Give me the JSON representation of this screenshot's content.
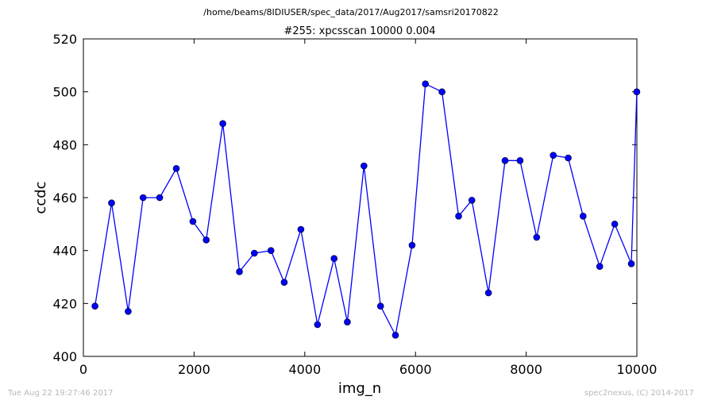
{
  "chart_data": {
    "type": "line",
    "subtitle": "/home/beams/8IDIUSER/spec_data/2017/Aug2017/samsri20170822",
    "title": "#255: xpcsscan 10000 0.004",
    "xlabel": "img_n",
    "ylabel": "ccdc",
    "xlim": [
      0,
      10000
    ],
    "ylim": [
      400,
      520
    ],
    "xticks": [
      0,
      2000,
      4000,
      6000,
      8000,
      10000
    ],
    "yticks": [
      400,
      420,
      440,
      460,
      480,
      500,
      520
    ],
    "grid": false,
    "marker": "circle",
    "line_color": "#0000ff",
    "x": [
      209,
      509,
      809,
      1079,
      1379,
      1679,
      1979,
      2219,
      2519,
      2819,
      3089,
      3389,
      3629,
      3929,
      4229,
      4529,
      4769,
      5069,
      5369,
      5639,
      5939,
      6179,
      6479,
      6779,
      7019,
      7319,
      7619,
      7889,
      8189,
      8489,
      8759,
      9029,
      9329,
      9599,
      9899,
      9999
    ],
    "y": [
      419,
      458,
      417,
      460,
      460,
      471,
      451,
      444,
      488,
      432,
      439,
      440,
      428,
      448,
      412,
      437,
      413,
      472,
      419,
      408,
      442,
      503,
      500,
      453,
      459,
      424,
      474,
      474,
      445,
      476,
      475,
      453,
      434,
      450,
      435,
      500
    ]
  },
  "footer": {
    "timestamp": "Tue Aug 22 19:27:46 2017",
    "credit": "spec2nexus, (C) 2014-2017"
  }
}
